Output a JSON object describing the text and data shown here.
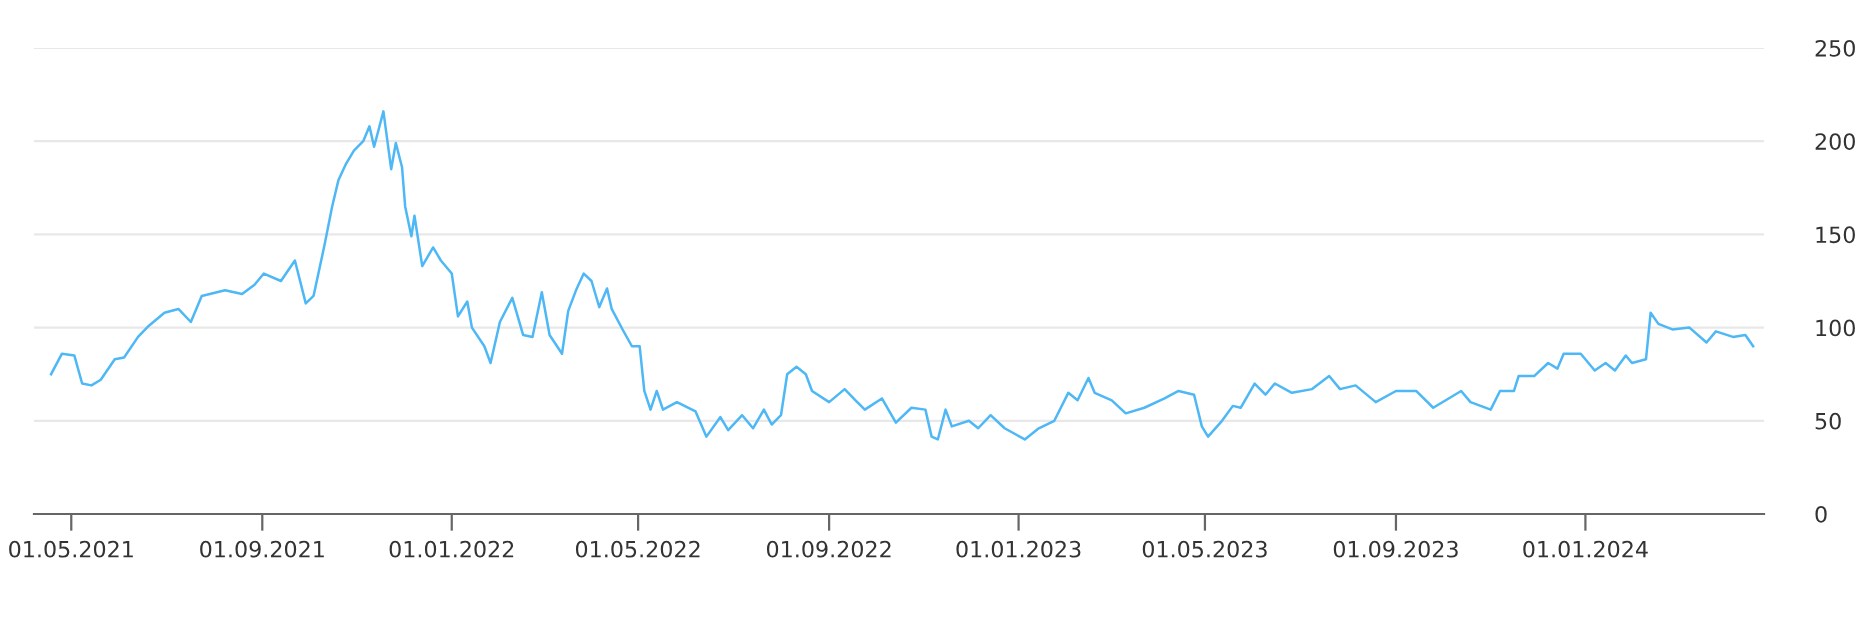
{
  "chart_data": {
    "type": "line",
    "x": [
      "2021-04-18",
      "2021-04-25",
      "2021-05-03",
      "2021-05-08",
      "2021-05-14",
      "2021-05-20",
      "2021-05-29",
      "2021-06-04",
      "2021-06-13",
      "2021-06-20",
      "2021-06-30",
      "2021-07-09",
      "2021-07-17",
      "2021-07-24",
      "2021-08-08",
      "2021-08-19",
      "2021-08-27",
      "2021-09-02",
      "2021-09-13",
      "2021-09-22",
      "2021-09-29",
      "2021-10-04",
      "2021-10-11",
      "2021-10-16",
      "2021-10-20",
      "2021-10-25",
      "2021-10-30",
      "2021-11-05",
      "2021-11-09",
      "2021-11-12",
      "2021-11-18",
      "2021-11-23",
      "2021-11-26",
      "2021-11-30",
      "2021-12-02",
      "2021-12-06",
      "2021-12-08",
      "2021-12-13",
      "2021-12-20",
      "2021-12-25",
      "2022-01-01",
      "2022-01-05",
      "2022-01-11",
      "2022-01-14",
      "2022-01-22",
      "2022-01-26",
      "2022-02-01",
      "2022-02-09",
      "2022-02-16",
      "2022-02-22",
      "2022-02-28",
      "2022-03-05",
      "2022-03-13",
      "2022-03-17",
      "2022-03-22",
      "2022-03-27",
      "2022-04-01",
      "2022-04-06",
      "2022-04-11",
      "2022-04-14",
      "2022-04-21",
      "2022-04-27",
      "2022-05-02",
      "2022-05-05",
      "2022-05-09",
      "2022-05-13",
      "2022-05-17",
      "2022-05-26",
      "2022-06-07",
      "2022-06-14",
      "2022-06-23",
      "2022-06-28",
      "2022-07-07",
      "2022-07-14",
      "2022-07-21",
      "2022-07-26",
      "2022-08-01",
      "2022-08-05",
      "2022-08-11",
      "2022-08-17",
      "2022-08-21",
      "2022-09-01",
      "2022-09-11",
      "2022-09-18",
      "2022-09-24",
      "2022-10-05",
      "2022-10-14",
      "2022-10-24",
      "2022-11-02",
      "2022-11-06",
      "2022-11-10",
      "2022-11-15",
      "2022-11-19",
      "2022-11-30",
      "2022-12-06",
      "2022-12-14",
      "2022-12-23",
      "2023-01-05",
      "2023-01-14",
      "2023-01-24",
      "2023-02-02",
      "2023-02-08",
      "2023-02-15",
      "2023-02-19",
      "2023-03-02",
      "2023-03-11",
      "2023-03-23",
      "2023-04-05",
      "2023-04-14",
      "2023-04-24",
      "2023-04-29",
      "2023-05-03",
      "2023-05-12",
      "2023-05-19",
      "2023-05-24",
      "2023-06-02",
      "2023-06-09",
      "2023-06-15",
      "2023-06-26",
      "2023-07-09",
      "2023-07-20",
      "2023-07-27",
      "2023-08-06",
      "2023-08-19",
      "2023-09-01",
      "2023-09-14",
      "2023-09-25",
      "2023-10-13",
      "2023-10-19",
      "2023-11-01",
      "2023-11-07",
      "2023-11-16",
      "2023-11-19",
      "2023-11-29",
      "2023-12-08",
      "2023-12-14",
      "2023-12-18",
      "2023-12-29",
      "2024-01-07",
      "2024-01-14",
      "2024-01-20",
      "2024-01-27",
      "2024-01-31",
      "2024-02-09",
      "2024-02-12",
      "2024-02-17",
      "2024-02-26",
      "2024-03-08",
      "2024-03-19",
      "2024-03-25",
      "2024-04-05",
      "2024-04-13",
      "2024-04-18"
    ],
    "series": [
      {
        "color": "#4db8f5",
        "values": [
          75,
          86,
          85,
          70,
          69,
          72,
          83,
          84,
          95,
          101,
          108,
          110,
          103,
          117,
          120,
          118,
          123,
          129,
          125,
          136,
          113,
          117,
          144,
          165,
          179,
          188,
          195,
          200,
          208,
          197,
          216,
          185,
          199,
          186,
          165,
          149,
          160,
          133,
          143,
          136,
          129,
          106,
          114,
          100,
          90,
          81,
          103,
          116,
          96,
          95,
          119,
          96,
          86,
          109,
          120,
          129,
          125,
          111,
          121,
          110,
          99,
          90,
          90,
          66,
          56,
          66,
          56,
          60,
          55,
          41.5,
          52,
          45,
          53,
          46,
          56,
          48,
          53,
          75,
          79,
          75,
          66,
          60,
          67,
          61,
          56,
          62,
          49,
          57,
          56,
          41.5,
          40,
          56,
          47,
          50,
          46,
          53,
          46,
          40,
          46,
          50,
          65,
          61,
          73,
          65,
          61,
          54,
          57,
          62,
          66,
          64,
          47,
          41.5,
          50,
          58,
          57,
          70,
          64,
          70,
          65,
          67,
          74,
          67,
          69,
          60,
          66,
          66,
          57,
          66,
          60,
          56,
          66,
          66,
          74,
          74,
          81,
          78,
          86,
          86,
          77,
          81,
          77,
          85,
          81,
          83,
          108,
          102,
          99,
          100,
          92,
          98,
          95,
          96,
          90
        ]
      }
    ],
    "xlim": [
      "2021-04-07",
      "2024-04-25"
    ],
    "xticks": [
      {
        "value": "2021-05-01",
        "label": "01.05.2021"
      },
      {
        "value": "2021-09-01",
        "label": "01.09.2021"
      },
      {
        "value": "2022-01-01",
        "label": "01.01.2022"
      },
      {
        "value": "2022-05-01",
        "label": "01.05.2022"
      },
      {
        "value": "2022-09-01",
        "label": "01.09.2022"
      },
      {
        "value": "2023-01-01",
        "label": "01.01.2023"
      },
      {
        "value": "2023-05-01",
        "label": "01.05.2023"
      },
      {
        "value": "2023-09-01",
        "label": "01.09.2023"
      },
      {
        "value": "2024-01-01",
        "label": "01.01.2024"
      }
    ],
    "ylim": [
      0,
      250
    ],
    "yticks": [
      0,
      50,
      100,
      150,
      200,
      250
    ],
    "grid": "y",
    "marker": "none",
    "line_style": "solid"
  }
}
